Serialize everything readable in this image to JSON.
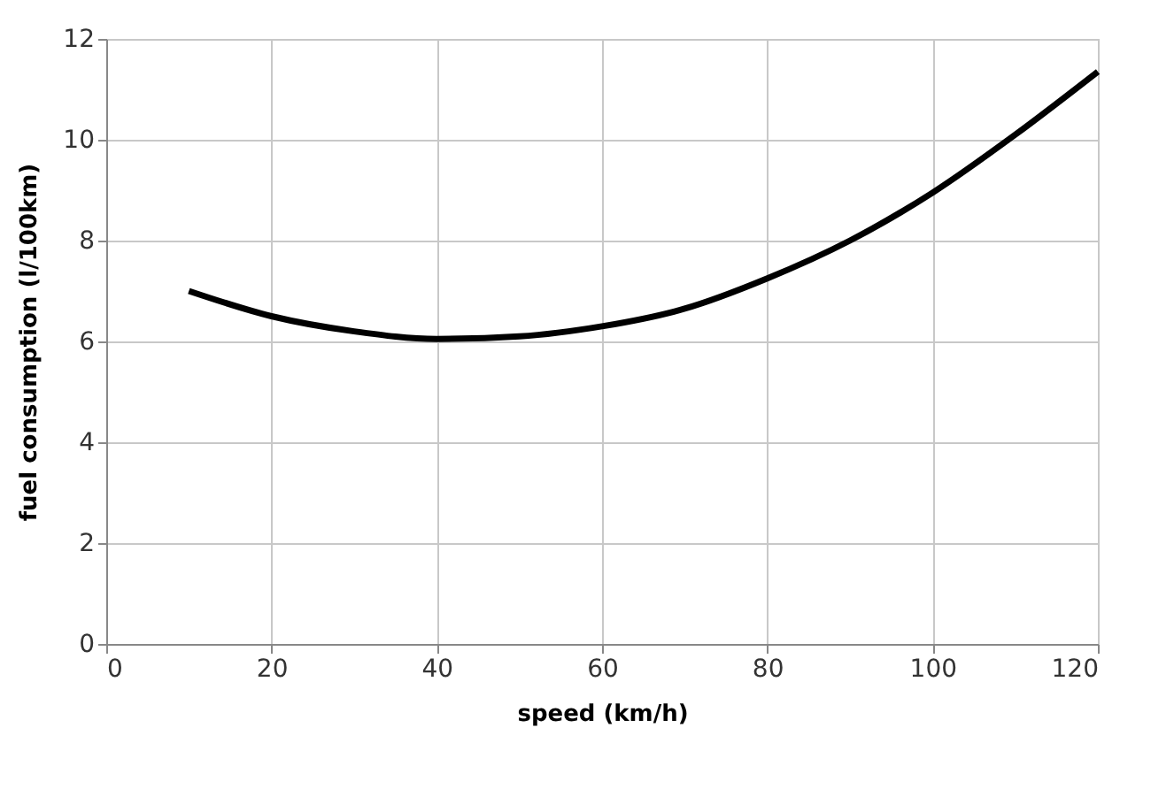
{
  "chart_data": {
    "type": "line",
    "xlabel": "speed (km/h)",
    "ylabel": "fuel consumption (l/100km)",
    "xlim": [
      0,
      120
    ],
    "xticks": [
      0,
      20,
      40,
      60,
      80,
      100,
      120
    ],
    "ylim": [
      0,
      12
    ],
    "yticks": [
      0,
      2,
      4,
      6,
      8,
      10,
      12
    ],
    "grid": true,
    "marker": "none",
    "line_style": "solid",
    "series": [
      {
        "color": "#000000",
        "x": [
          10,
          20,
          30,
          40,
          50,
          60,
          70,
          80,
          90,
          100,
          110,
          120
        ],
        "values": [
          7.0,
          6.5,
          6.2,
          6.05,
          6.1,
          6.3,
          6.65,
          7.25,
          8.0,
          8.95,
          10.1,
          11.35
        ]
      }
    ]
  }
}
